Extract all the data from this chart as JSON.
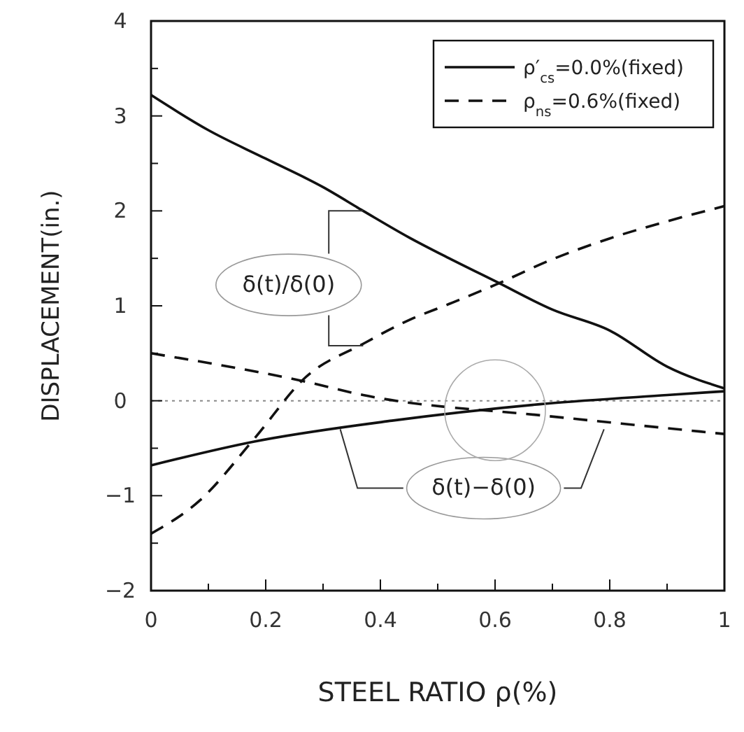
{
  "chart_data": {
    "type": "line",
    "xlabel": "STEEL RATIO ρ(%)",
    "ylabel": "DISPLACEMENT(in.)",
    "xlim": [
      0,
      1
    ],
    "ylim": [
      -2,
      4
    ],
    "xticks": [
      0,
      {
        "value": 0.1,
        "label": null
      },
      0.2,
      {
        "value": 0.3,
        "label": null
      },
      0.4,
      {
        "value": 0.5,
        "label": null
      },
      0.6,
      {
        "value": 0.7,
        "label": null
      },
      0.8,
      {
        "value": 0.9,
        "label": null
      },
      1
    ],
    "yticks": [
      -2,
      {
        "value": -1.5,
        "label": null
      },
      -1,
      {
        "value": -0.5,
        "label": null
      },
      0,
      {
        "value": 0.5,
        "label": null
      },
      1,
      {
        "value": 1.5,
        "label": null
      },
      2,
      {
        "value": 2.5,
        "label": null
      },
      3,
      {
        "value": 3.5,
        "label": null
      },
      4
    ],
    "legend": "top right",
    "grid": false,
    "marker": "none",
    "series": [
      {
        "name": "ρ′$_{cs}$=0.0%(fixed)",
        "color": "#111111",
        "line_style": "solid",
        "x": [
          0,
          0.1,
          0.2,
          0.3,
          0.37,
          0.45,
          0.52,
          0.6,
          0.7,
          0.8,
          0.9,
          1
        ],
        "values": [
          3.22,
          2.85,
          2.55,
          2.25,
          2.0,
          1.72,
          1.5,
          1.26,
          0.96,
          0.74,
          0.36,
          0.13
        ]
      },
      {
        "name": "ρ$_{ns}$=0.6%(fixed)",
        "color": "#111111",
        "line_style": "dashed",
        "x": [
          0,
          0.085,
          0.18,
          0.27,
          0.37,
          0.45,
          0.52,
          0.6,
          0.7,
          0.8,
          0.9,
          1
        ],
        "values": [
          -1.4,
          -1.05,
          -0.4,
          0.25,
          0.6,
          0.85,
          1.02,
          1.22,
          1.49,
          1.71,
          1.89,
          2.05
        ]
      },
      {
        "color": "#111111",
        "line_style": "solid",
        "x": [
          0,
          0.18,
          0.42,
          0.69,
          0.9,
          1
        ],
        "values": [
          -0.68,
          -0.43,
          -0.21,
          -0.03,
          0.06,
          0.1
        ]
      },
      {
        "color": "#111111",
        "line_style": "dashed",
        "x": [
          0,
          0.27,
          0.37,
          0.69,
          0.82,
          1
        ],
        "values": [
          0.5,
          0.2,
          0.06,
          -0.16,
          -0.24,
          -0.35
        ]
      }
    ],
    "ref_lines": [
      {
        "axis": "y",
        "value": 0,
        "line_style": "dotted",
        "color": "#888888"
      }
    ],
    "annotations": [
      {
        "text": "δ(t)/δ(0)",
        "x": 0.37,
        "y": 2.0
      },
      {
        "text": "δ(t)−δ(0)",
        "x": 0.33,
        "y": -0.3
      }
    ]
  }
}
